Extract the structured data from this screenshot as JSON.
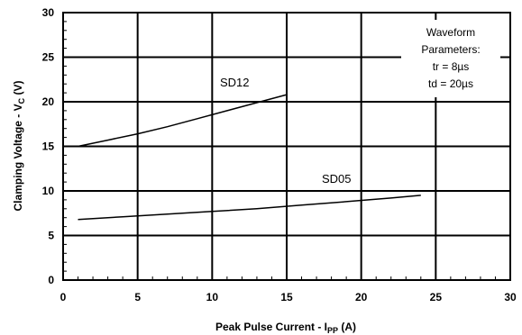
{
  "chart_data": {
    "type": "line",
    "xlabel": "Peak Pulse Current - I",
    "xlabel_sub": "PP",
    "xlabel_suffix": " (A)",
    "ylabel": "Clamping Voltage - V",
    "ylabel_sub": "C",
    "ylabel_suffix": " (V)",
    "xlim": [
      0,
      30
    ],
    "ylim": [
      0,
      30
    ],
    "x_ticks": [
      "0",
      "5",
      "10",
      "15",
      "20",
      "25",
      "30"
    ],
    "y_ticks": [
      "0",
      "5",
      "10",
      "15",
      "20",
      "25",
      "30"
    ],
    "grid": true,
    "series": [
      {
        "name": "SD12",
        "x": [
          1,
          3,
          5,
          7,
          9,
          11,
          13,
          15
        ],
        "y": [
          15.0,
          15.7,
          16.4,
          17.2,
          18.1,
          19.0,
          19.9,
          20.8
        ]
      },
      {
        "name": "SD05",
        "x": [
          1,
          4,
          7,
          10,
          13,
          16,
          19,
          22,
          24
        ],
        "y": [
          6.8,
          7.1,
          7.4,
          7.7,
          8.0,
          8.4,
          8.8,
          9.2,
          9.5
        ]
      }
    ],
    "annotation": {
      "lines": [
        "Waveform",
        "Parameters:",
        "tr = 8µs",
        "td = 20µs"
      ]
    }
  }
}
